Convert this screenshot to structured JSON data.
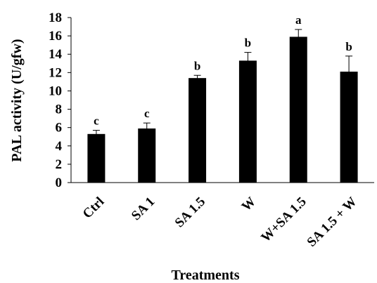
{
  "chart_data": {
    "type": "bar",
    "title": "",
    "xlabel": "Treatments",
    "ylabel": "PAL activity (U/gfw)",
    "ylim": [
      0,
      18
    ],
    "yticks": [
      0,
      2,
      4,
      6,
      8,
      10,
      12,
      14,
      16,
      18
    ],
    "grid": false,
    "categories": [
      "Ctrl",
      "SA 1",
      "SA 1.5",
      "W",
      "W+SA 1.5",
      "SA 1.5 + W"
    ],
    "values": [
      5.3,
      5.9,
      11.4,
      13.3,
      15.9,
      12.1
    ],
    "errors": [
      0.4,
      0.6,
      0.3,
      0.9,
      0.8,
      1.7
    ],
    "significance": [
      "c",
      "c",
      "b",
      "b",
      "a",
      "b"
    ],
    "bar_color": "#000000"
  }
}
